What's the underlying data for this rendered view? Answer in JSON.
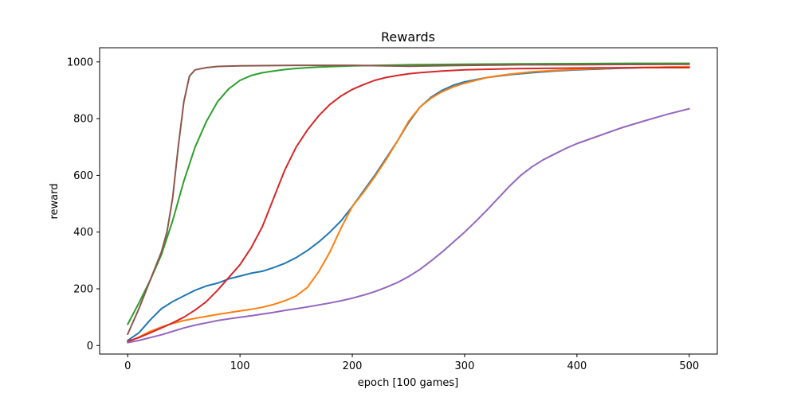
{
  "chart_data": {
    "type": "line",
    "title": "Rewards",
    "xlabel": "epoch [100 games]",
    "ylabel": "reward",
    "xlim": [
      -25,
      525
    ],
    "ylim": [
      -30,
      1050
    ],
    "xticks": [
      0,
      100,
      200,
      300,
      400,
      500
    ],
    "yticks": [
      0,
      200,
      400,
      600,
      800,
      1000
    ],
    "grid": false,
    "legend": "none",
    "series": [
      {
        "color": "#1f77b4",
        "points": [
          [
            0,
            18
          ],
          [
            10,
            45
          ],
          [
            20,
            90
          ],
          [
            30,
            130
          ],
          [
            40,
            155
          ],
          [
            50,
            175
          ],
          [
            60,
            195
          ],
          [
            70,
            210
          ],
          [
            80,
            220
          ],
          [
            90,
            235
          ],
          [
            100,
            245
          ],
          [
            110,
            255
          ],
          [
            120,
            262
          ],
          [
            130,
            275
          ],
          [
            140,
            290
          ],
          [
            150,
            310
          ],
          [
            160,
            335
          ],
          [
            170,
            365
          ],
          [
            180,
            400
          ],
          [
            190,
            440
          ],
          [
            200,
            490
          ],
          [
            210,
            545
          ],
          [
            220,
            600
          ],
          [
            230,
            660
          ],
          [
            240,
            720
          ],
          [
            250,
            785
          ],
          [
            260,
            840
          ],
          [
            270,
            875
          ],
          [
            280,
            900
          ],
          [
            290,
            918
          ],
          [
            300,
            930
          ],
          [
            320,
            945
          ],
          [
            340,
            955
          ],
          [
            360,
            962
          ],
          [
            380,
            968
          ],
          [
            400,
            972
          ],
          [
            420,
            975
          ],
          [
            440,
            978
          ],
          [
            460,
            980
          ],
          [
            480,
            982
          ],
          [
            500,
            983
          ]
        ]
      },
      {
        "color": "#ff7f0e",
        "points": [
          [
            0,
            12
          ],
          [
            10,
            30
          ],
          [
            20,
            50
          ],
          [
            30,
            65
          ],
          [
            40,
            78
          ],
          [
            50,
            88
          ],
          [
            60,
            96
          ],
          [
            70,
            103
          ],
          [
            80,
            110
          ],
          [
            90,
            116
          ],
          [
            100,
            122
          ],
          [
            110,
            128
          ],
          [
            120,
            135
          ],
          [
            130,
            145
          ],
          [
            140,
            158
          ],
          [
            150,
            175
          ],
          [
            160,
            205
          ],
          [
            170,
            260
          ],
          [
            180,
            330
          ],
          [
            190,
            415
          ],
          [
            200,
            490
          ],
          [
            210,
            540
          ],
          [
            220,
            595
          ],
          [
            230,
            655
          ],
          [
            240,
            720
          ],
          [
            250,
            790
          ],
          [
            260,
            840
          ],
          [
            270,
            872
          ],
          [
            280,
            895
          ],
          [
            290,
            912
          ],
          [
            300,
            925
          ],
          [
            320,
            945
          ],
          [
            340,
            957
          ],
          [
            360,
            965
          ],
          [
            380,
            970
          ],
          [
            400,
            974
          ],
          [
            420,
            977
          ],
          [
            440,
            979
          ],
          [
            460,
            981
          ],
          [
            480,
            982
          ],
          [
            500,
            983
          ]
        ]
      },
      {
        "color": "#2ca02c",
        "points": [
          [
            0,
            75
          ],
          [
            10,
            150
          ],
          [
            20,
            230
          ],
          [
            30,
            320
          ],
          [
            40,
            440
          ],
          [
            50,
            580
          ],
          [
            60,
            700
          ],
          [
            70,
            790
          ],
          [
            80,
            860
          ],
          [
            90,
            905
          ],
          [
            100,
            935
          ],
          [
            110,
            952
          ],
          [
            120,
            962
          ],
          [
            130,
            968
          ],
          [
            140,
            973
          ],
          [
            150,
            977
          ],
          [
            170,
            982
          ],
          [
            200,
            986
          ],
          [
            250,
            990
          ],
          [
            300,
            992
          ],
          [
            350,
            993
          ],
          [
            400,
            994
          ],
          [
            450,
            995
          ],
          [
            500,
            995
          ]
        ]
      },
      {
        "color": "#d62728",
        "points": [
          [
            0,
            15
          ],
          [
            10,
            28
          ],
          [
            20,
            45
          ],
          [
            30,
            62
          ],
          [
            40,
            80
          ],
          [
            50,
            100
          ],
          [
            60,
            125
          ],
          [
            70,
            155
          ],
          [
            80,
            195
          ],
          [
            90,
            240
          ],
          [
            100,
            285
          ],
          [
            110,
            345
          ],
          [
            120,
            420
          ],
          [
            130,
            520
          ],
          [
            140,
            620
          ],
          [
            150,
            700
          ],
          [
            160,
            760
          ],
          [
            170,
            810
          ],
          [
            180,
            850
          ],
          [
            190,
            880
          ],
          [
            200,
            903
          ],
          [
            210,
            920
          ],
          [
            220,
            935
          ],
          [
            230,
            945
          ],
          [
            240,
            952
          ],
          [
            250,
            958
          ],
          [
            260,
            962
          ],
          [
            280,
            968
          ],
          [
            300,
            972
          ],
          [
            340,
            976
          ],
          [
            380,
            978
          ],
          [
            420,
            979
          ],
          [
            460,
            980
          ],
          [
            500,
            980
          ]
        ]
      },
      {
        "color": "#9467bd",
        "points": [
          [
            0,
            10
          ],
          [
            10,
            18
          ],
          [
            20,
            28
          ],
          [
            30,
            38
          ],
          [
            40,
            50
          ],
          [
            50,
            62
          ],
          [
            60,
            72
          ],
          [
            70,
            80
          ],
          [
            80,
            88
          ],
          [
            90,
            94
          ],
          [
            100,
            100
          ],
          [
            110,
            105
          ],
          [
            120,
            111
          ],
          [
            130,
            117
          ],
          [
            140,
            124
          ],
          [
            150,
            130
          ],
          [
            160,
            136
          ],
          [
            170,
            143
          ],
          [
            180,
            150
          ],
          [
            190,
            158
          ],
          [
            200,
            167
          ],
          [
            210,
            178
          ],
          [
            220,
            190
          ],
          [
            230,
            205
          ],
          [
            240,
            222
          ],
          [
            250,
            243
          ],
          [
            260,
            268
          ],
          [
            270,
            298
          ],
          [
            280,
            330
          ],
          [
            290,
            365
          ],
          [
            300,
            400
          ],
          [
            310,
            438
          ],
          [
            320,
            478
          ],
          [
            330,
            520
          ],
          [
            340,
            562
          ],
          [
            350,
            600
          ],
          [
            360,
            630
          ],
          [
            370,
            655
          ],
          [
            380,
            675
          ],
          [
            390,
            695
          ],
          [
            400,
            712
          ],
          [
            420,
            740
          ],
          [
            440,
            768
          ],
          [
            460,
            792
          ],
          [
            480,
            815
          ],
          [
            500,
            835
          ]
        ]
      },
      {
        "color": "#8c564b",
        "points": [
          [
            0,
            40
          ],
          [
            10,
            130
          ],
          [
            20,
            230
          ],
          [
            30,
            330
          ],
          [
            35,
            400
          ],
          [
            40,
            520
          ],
          [
            45,
            700
          ],
          [
            50,
            860
          ],
          [
            55,
            950
          ],
          [
            60,
            972
          ],
          [
            70,
            980
          ],
          [
            80,
            984
          ],
          [
            100,
            986
          ],
          [
            150,
            988
          ],
          [
            200,
            988
          ],
          [
            250,
            985
          ],
          [
            300,
            988
          ],
          [
            350,
            990
          ],
          [
            400,
            990
          ],
          [
            450,
            991
          ],
          [
            500,
            992
          ]
        ]
      }
    ]
  }
}
